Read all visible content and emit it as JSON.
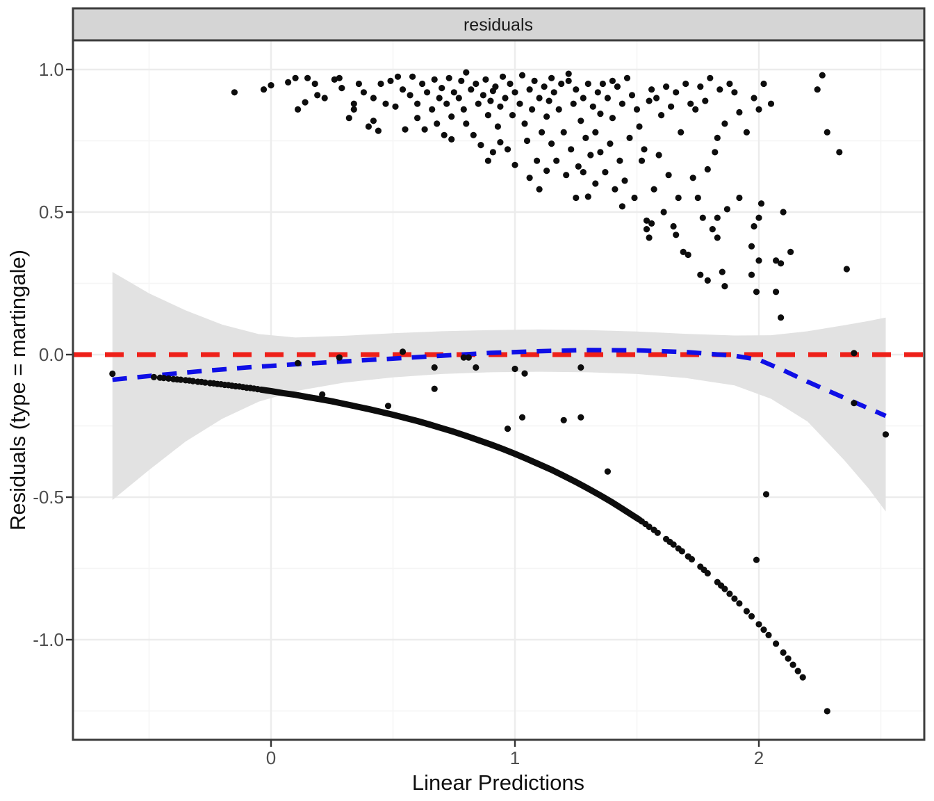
{
  "figure": {
    "strip_label": "residuals",
    "x_axis": {
      "title": "Linear Predictions",
      "ticks": [
        {
          "value": 0,
          "label": "0"
        },
        {
          "value": 1,
          "label": "1"
        },
        {
          "value": 2,
          "label": "2"
        }
      ],
      "minor": [
        -0.5,
        0.5,
        1.5,
        2.5
      ]
    },
    "y_axis": {
      "title": "Residuals (type = martingale)",
      "ticks": [
        {
          "value": 1.0,
          "label": "1.0"
        },
        {
          "value": 0.5,
          "label": "0.5"
        },
        {
          "value": 0.0,
          "label": "0.0"
        },
        {
          "value": -0.5,
          "label": "-0.5"
        },
        {
          "value": -1.0,
          "label": "-1.0"
        }
      ],
      "minor": [
        0.75,
        0.25,
        -0.25,
        -0.75,
        -1.25
      ]
    },
    "colors": {
      "background": "#FFFFFF",
      "panel_background": "#FFFFFF",
      "strip_fill": "#D5D5D5",
      "panel_border": "#3C3C3C",
      "grid_major": "#ECECEC",
      "grid_minor": "#F5F5F5",
      "tick_mark": "#333333",
      "reference_line": "#EE2019",
      "smooth_line": "#0F0FE6",
      "ribbon": "#E2E2E2",
      "points": "#0D0D0D"
    }
  },
  "chart_data": {
    "type": "scatter",
    "title": "residuals",
    "xlabel": "Linear Predictions",
    "ylabel": "Residuals (type = martingale)",
    "xlim": [
      -0.81,
      2.68
    ],
    "ylim": [
      -1.35,
      1.1
    ],
    "grid": "on",
    "legend": "none",
    "reference_line_y": 0,
    "smooth": {
      "style": "dashed",
      "line": [
        [
          -0.65,
          -0.088
        ],
        [
          -0.5,
          -0.075
        ],
        [
          -0.3,
          -0.059
        ],
        [
          -0.1,
          -0.045
        ],
        [
          0.1,
          -0.034
        ],
        [
          0.3,
          -0.024
        ],
        [
          0.5,
          -0.014
        ],
        [
          0.7,
          -0.004
        ],
        [
          0.9,
          0.006
        ],
        [
          1.1,
          0.012
        ],
        [
          1.3,
          0.016
        ],
        [
          1.5,
          0.015
        ],
        [
          1.7,
          0.009
        ],
        [
          1.9,
          -0.004
        ],
        [
          2.0,
          -0.018
        ],
        [
          2.1,
          -0.055
        ],
        [
          2.2,
          -0.095
        ],
        [
          2.3,
          -0.133
        ],
        [
          2.4,
          -0.17
        ],
        [
          2.52,
          -0.215
        ]
      ],
      "ribbon_x": [
        -0.65,
        -0.5,
        -0.35,
        -0.2,
        -0.05,
        0.1,
        0.3,
        0.5,
        0.7,
        0.9,
        1.1,
        1.3,
        1.5,
        1.7,
        1.9,
        2.05,
        2.2,
        2.35,
        2.45,
        2.52
      ],
      "ribbon_top": [
        0.29,
        0.215,
        0.155,
        0.105,
        0.072,
        0.06,
        0.066,
        0.075,
        0.082,
        0.086,
        0.088,
        0.086,
        0.081,
        0.073,
        0.067,
        0.068,
        0.082,
        0.103,
        0.118,
        0.13
      ],
      "ribbon_bottom": [
        -0.51,
        -0.405,
        -0.305,
        -0.225,
        -0.165,
        -0.128,
        -0.098,
        -0.08,
        -0.068,
        -0.062,
        -0.06,
        -0.062,
        -0.068,
        -0.082,
        -0.108,
        -0.155,
        -0.235,
        -0.37,
        -0.47,
        -0.55
      ]
    },
    "censored_curve_dense": [
      [
        -0.04,
        -0.123
      ],
      [
        0.0,
        -0.128
      ],
      [
        0.05,
        -0.135
      ],
      [
        0.1,
        -0.141
      ],
      [
        0.15,
        -0.149
      ],
      [
        0.2,
        -0.156
      ],
      [
        0.25,
        -0.164
      ],
      [
        0.3,
        -0.173
      ],
      [
        0.35,
        -0.182
      ],
      [
        0.4,
        -0.191
      ],
      [
        0.45,
        -0.201
      ],
      [
        0.5,
        -0.211
      ],
      [
        0.55,
        -0.222
      ],
      [
        0.6,
        -0.233
      ],
      [
        0.65,
        -0.245
      ],
      [
        0.7,
        -0.258
      ],
      [
        0.75,
        -0.271
      ],
      [
        0.8,
        -0.285
      ],
      [
        0.85,
        -0.3
      ],
      [
        0.9,
        -0.315
      ],
      [
        0.95,
        -0.331
      ],
      [
        1.0,
        -0.348
      ],
      [
        1.05,
        -0.366
      ],
      [
        1.1,
        -0.385
      ],
      [
        1.15,
        -0.404
      ],
      [
        1.2,
        -0.425
      ],
      [
        1.25,
        -0.447
      ],
      [
        1.3,
        -0.47
      ],
      [
        1.35,
        -0.494
      ],
      [
        1.4,
        -0.519
      ],
      [
        1.45,
        -0.546
      ],
      [
        1.51,
        -0.579
      ]
    ],
    "censored_points": [
      [
        -0.65,
        -0.067
      ],
      [
        -0.48,
        -0.079
      ],
      [
        -0.455,
        -0.081
      ],
      [
        -0.44,
        -0.082
      ],
      [
        -0.42,
        -0.084
      ],
      [
        -0.4,
        -0.086
      ],
      [
        -0.385,
        -0.087
      ],
      [
        -0.37,
        -0.088
      ],
      [
        -0.35,
        -0.09
      ],
      [
        -0.335,
        -0.091
      ],
      [
        -0.32,
        -0.093
      ],
      [
        -0.3,
        -0.095
      ],
      [
        -0.285,
        -0.096
      ],
      [
        -0.27,
        -0.098
      ],
      [
        -0.25,
        -0.1
      ],
      [
        -0.235,
        -0.101
      ],
      [
        -0.22,
        -0.103
      ],
      [
        -0.205,
        -0.104
      ],
      [
        -0.19,
        -0.106
      ],
      [
        -0.175,
        -0.107
      ],
      [
        -0.16,
        -0.109
      ],
      [
        -0.145,
        -0.111
      ],
      [
        -0.13,
        -0.112
      ],
      [
        -0.115,
        -0.114
      ],
      [
        -0.1,
        -0.116
      ],
      [
        -0.085,
        -0.117
      ],
      [
        -0.07,
        -0.119
      ],
      [
        -0.055,
        -0.121
      ],
      [
        0.21,
        -0.14
      ],
      [
        0.48,
        -0.18
      ],
      [
        1.52,
        -0.585
      ],
      [
        1.535,
        -0.594
      ],
      [
        1.55,
        -0.604
      ],
      [
        1.57,
        -0.615
      ],
      [
        1.585,
        -0.625
      ],
      [
        1.62,
        -0.647
      ],
      [
        1.635,
        -0.657
      ],
      [
        1.65,
        -0.666
      ],
      [
        1.67,
        -0.68
      ],
      [
        1.685,
        -0.69
      ],
      [
        1.71,
        -0.708
      ],
      [
        1.725,
        -0.718
      ],
      [
        1.76,
        -0.744
      ],
      [
        1.775,
        -0.755
      ],
      [
        1.79,
        -0.767
      ],
      [
        1.83,
        -0.798
      ],
      [
        1.845,
        -0.81
      ],
      [
        1.86,
        -0.822
      ],
      [
        1.88,
        -0.839
      ],
      [
        1.9,
        -0.856
      ],
      [
        1.92,
        -0.873
      ],
      [
        1.95,
        -0.9
      ],
      [
        1.97,
        -0.918
      ],
      [
        2.0,
        -0.946
      ],
      [
        2.02,
        -0.965
      ],
      [
        2.04,
        -0.984
      ],
      [
        2.07,
        -1.014
      ],
      [
        2.1,
        -1.045
      ],
      [
        2.12,
        -1.066
      ],
      [
        2.14,
        -1.088
      ],
      [
        2.16,
        -1.11
      ],
      [
        2.18,
        -1.132
      ],
      [
        2.28,
        -1.251
      ]
    ],
    "event_points_upper": [
      [
        -0.15,
        0.92
      ],
      [
        -0.03,
        0.93
      ],
      [
        0.0,
        0.945
      ],
      [
        0.07,
        0.955
      ],
      [
        0.1,
        0.97
      ],
      [
        0.11,
        0.86
      ],
      [
        0.14,
        0.885
      ],
      [
        0.15,
        0.97
      ],
      [
        0.18,
        0.95
      ],
      [
        0.19,
        0.91
      ],
      [
        0.22,
        0.9
      ],
      [
        0.26,
        0.965
      ],
      [
        0.28,
        0.97
      ],
      [
        0.29,
        0.935
      ],
      [
        0.32,
        0.83
      ],
      [
        0.34,
        0.88
      ],
      [
        0.34,
        0.86
      ],
      [
        0.36,
        0.95
      ],
      [
        0.38,
        0.92
      ],
      [
        0.4,
        0.8
      ],
      [
        0.42,
        0.9
      ],
      [
        0.42,
        0.82
      ],
      [
        0.44,
        0.785
      ],
      [
        0.45,
        0.95
      ],
      [
        0.47,
        0.88
      ],
      [
        0.49,
        0.96
      ],
      [
        0.51,
        0.87
      ],
      [
        0.52,
        0.975
      ],
      [
        0.54,
        0.93
      ],
      [
        0.55,
        0.79
      ],
      [
        0.57,
        0.91
      ],
      [
        0.58,
        0.975
      ],
      [
        0.6,
        0.88
      ],
      [
        0.6,
        0.83
      ],
      [
        0.62,
        0.95
      ],
      [
        0.63,
        0.79
      ],
      [
        0.64,
        0.92
      ],
      [
        0.66,
        0.86
      ],
      [
        0.67,
        0.965
      ],
      [
        0.68,
        0.81
      ],
      [
        0.69,
        0.9
      ],
      [
        0.7,
        0.935
      ],
      [
        0.71,
        0.77
      ],
      [
        0.72,
        0.88
      ],
      [
        0.73,
        0.97
      ],
      [
        0.74,
        0.835
      ],
      [
        0.75,
        0.92
      ],
      [
        0.74,
        0.755
      ],
      [
        0.77,
        0.9
      ],
      [
        0.78,
        0.96
      ],
      [
        0.79,
        0.86
      ],
      [
        0.8,
        0.99
      ],
      [
        0.8,
        0.81
      ],
      [
        0.82,
        0.93
      ],
      [
        0.83,
        0.77
      ],
      [
        0.84,
        0.95
      ],
      [
        0.85,
        0.88
      ],
      [
        0.86,
        0.735
      ],
      [
        0.87,
        0.91
      ],
      [
        0.88,
        0.965
      ],
      [
        0.89,
        0.84
      ],
      [
        0.9,
        0.89
      ],
      [
        0.91,
        0.71
      ],
      [
        0.92,
        0.94
      ],
      [
        0.93,
        0.8
      ],
      [
        0.94,
        0.87
      ],
      [
        0.95,
        0.975
      ],
      [
        0.89,
        0.68
      ],
      [
        0.94,
        0.745
      ],
      [
        0.91,
        0.925
      ],
      [
        0.96,
        0.9
      ],
      [
        0.97,
        0.72
      ],
      [
        0.98,
        0.95
      ],
      [
        0.99,
        0.84
      ],
      [
        1.0,
        0.92
      ],
      [
        1.0,
        0.665
      ],
      [
        1.02,
        0.88
      ],
      [
        1.03,
        0.98
      ],
      [
        1.04,
        0.81
      ],
      [
        1.05,
        0.75
      ],
      [
        1.06,
        0.93
      ],
      [
        1.06,
        0.62
      ],
      [
        1.07,
        0.86
      ],
      [
        1.08,
        0.96
      ],
      [
        1.09,
        0.68
      ],
      [
        1.1,
        0.9
      ],
      [
        1.11,
        0.78
      ],
      [
        1.12,
        0.94
      ],
      [
        1.13,
        0.835
      ],
      [
        1.13,
        0.645
      ],
      [
        1.14,
        0.89
      ],
      [
        1.15,
        0.74
      ],
      [
        1.15,
        0.97
      ],
      [
        1.1,
        0.58
      ],
      [
        1.16,
        0.92
      ],
      [
        1.17,
        0.68
      ],
      [
        1.18,
        0.86
      ],
      [
        1.19,
        0.95
      ],
      [
        1.2,
        0.78
      ],
      [
        1.21,
        0.63
      ],
      [
        1.22,
        0.96
      ],
      [
        1.23,
        0.72
      ],
      [
        1.24,
        0.88
      ],
      [
        1.25,
        0.55
      ],
      [
        1.25,
        0.93
      ],
      [
        1.26,
        0.66
      ],
      [
        1.27,
        0.82
      ],
      [
        1.28,
        0.9
      ],
      [
        1.29,
        0.76
      ],
      [
        1.3,
        0.554
      ],
      [
        1.3,
        0.95
      ],
      [
        1.31,
        0.7
      ],
      [
        1.32,
        0.87
      ],
      [
        1.33,
        0.78
      ],
      [
        1.33,
        0.6
      ],
      [
        1.34,
        0.92
      ],
      [
        1.35,
        0.71
      ],
      [
        1.35,
        0.845
      ],
      [
        1.22,
        0.985
      ],
      [
        1.28,
        0.64
      ],
      [
        1.36,
        0.95
      ],
      [
        1.37,
        0.64
      ],
      [
        1.38,
        0.9
      ],
      [
        1.39,
        0.74
      ],
      [
        1.4,
        0.83
      ],
      [
        1.4,
        0.96
      ],
      [
        1.41,
        0.58
      ],
      [
        1.42,
        0.94
      ],
      [
        1.43,
        0.68
      ],
      [
        1.44,
        0.88
      ],
      [
        1.44,
        0.52
      ],
      [
        1.45,
        0.61
      ],
      [
        1.46,
        0.97
      ],
      [
        1.47,
        0.76
      ],
      [
        1.48,
        0.91
      ],
      [
        1.49,
        0.55
      ],
      [
        1.5,
        0.86
      ],
      [
        1.51,
        0.8
      ],
      [
        1.52,
        0.68
      ],
      [
        1.53,
        0.72
      ],
      [
        1.54,
        0.47
      ],
      [
        1.54,
        0.44
      ],
      [
        1.55,
        0.41
      ],
      [
        1.55,
        0.89
      ],
      [
        1.56,
        0.46
      ],
      [
        1.56,
        0.93
      ],
      [
        1.57,
        0.58
      ],
      [
        1.58,
        0.9
      ],
      [
        1.59,
        0.7
      ],
      [
        1.6,
        0.84
      ],
      [
        1.61,
        0.5
      ],
      [
        1.62,
        0.94
      ],
      [
        1.63,
        0.63
      ],
      [
        1.64,
        0.87
      ],
      [
        1.65,
        0.45
      ],
      [
        1.66,
        0.92
      ],
      [
        1.66,
        0.42
      ],
      [
        1.67,
        0.55
      ],
      [
        1.68,
        0.78
      ],
      [
        1.69,
        0.36
      ],
      [
        1.7,
        0.95
      ],
      [
        1.71,
        0.35
      ],
      [
        1.72,
        0.88
      ],
      [
        1.73,
        0.62
      ],
      [
        1.74,
        0.86
      ],
      [
        1.75,
        0.55
      ],
      [
        1.76,
        0.94
      ],
      [
        1.76,
        0.28
      ],
      [
        1.77,
        0.48
      ],
      [
        1.78,
        0.89
      ],
      [
        1.79,
        0.65
      ],
      [
        1.8,
        0.97
      ],
      [
        1.81,
        0.44
      ],
      [
        1.82,
        0.71
      ],
      [
        1.83,
        0.76
      ],
      [
        1.84,
        0.93
      ],
      [
        1.85,
        0.29
      ],
      [
        1.86,
        0.81
      ],
      [
        1.86,
        0.24
      ],
      [
        1.87,
        0.51
      ],
      [
        1.88,
        0.95
      ],
      [
        1.9,
        0.92
      ],
      [
        1.92,
        0.85
      ],
      [
        1.95,
        0.78
      ],
      [
        1.83,
        0.41
      ],
      [
        1.83,
        0.48
      ],
      [
        1.92,
        0.55
      ],
      [
        1.97,
        0.38
      ],
      [
        1.98,
        0.45
      ],
      [
        2.0,
        0.48
      ],
      [
        2.0,
        0.33
      ],
      [
        1.97,
        0.28
      ],
      [
        1.99,
        0.22
      ],
      [
        2.01,
        0.53
      ],
      [
        1.79,
        0.26
      ],
      [
        1.98,
        0.9
      ],
      [
        2.0,
        0.86
      ],
      [
        2.02,
        0.95
      ],
      [
        2.05,
        0.88
      ],
      [
        2.07,
        0.33
      ],
      [
        2.09,
        0.32
      ],
      [
        2.07,
        0.22
      ],
      [
        2.09,
        0.13
      ],
      [
        2.1,
        0.5
      ],
      [
        2.13,
        0.36
      ],
      [
        2.24,
        0.93
      ],
      [
        2.26,
        0.98
      ],
      [
        2.28,
        0.78
      ],
      [
        2.33,
        0.71
      ],
      [
        2.36,
        0.3
      ],
      [
        2.39,
        0.005
      ]
    ],
    "event_points_low": [
      [
        0.11,
        -0.03
      ],
      [
        0.28,
        -0.01
      ],
      [
        0.54,
        0.01
      ],
      [
        0.67,
        -0.045
      ],
      [
        0.67,
        -0.12
      ],
      [
        0.79,
        -0.01
      ],
      [
        0.81,
        -0.01
      ],
      [
        0.84,
        -0.045
      ],
      [
        0.97,
        -0.26
      ],
      [
        1.0,
        -0.05
      ],
      [
        1.03,
        -0.22
      ],
      [
        1.04,
        -0.066
      ],
      [
        1.2,
        -0.23
      ],
      [
        1.27,
        -0.045
      ],
      [
        1.27,
        -0.22
      ],
      [
        1.38,
        -0.41
      ],
      [
        1.99,
        -0.72
      ],
      [
        2.03,
        -0.49
      ],
      [
        2.39,
        -0.17
      ],
      [
        2.52,
        -0.28
      ]
    ]
  }
}
